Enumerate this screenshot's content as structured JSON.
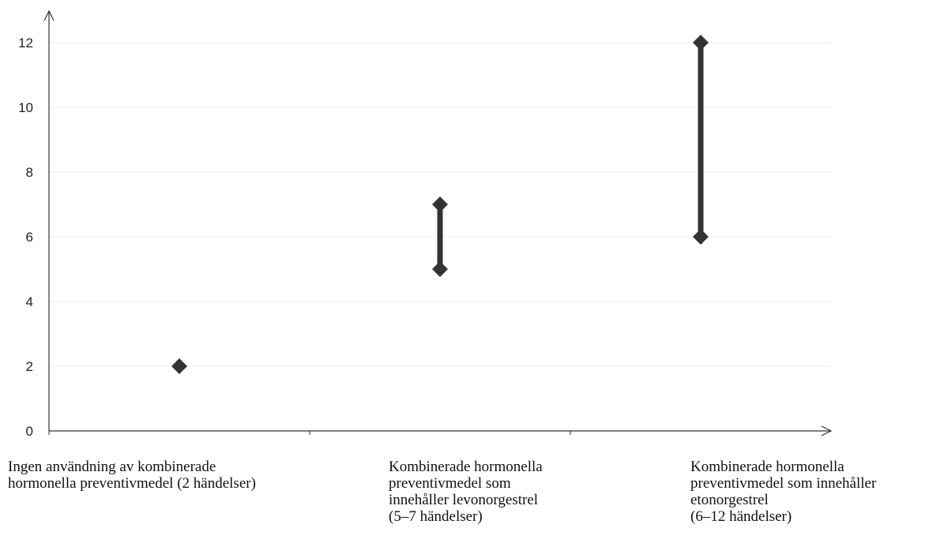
{
  "chart_data": {
    "type": "range",
    "ylim": [
      0,
      12
    ],
    "yticks": [
      "0",
      "2",
      "4",
      "6",
      "8",
      "10",
      "12"
    ],
    "categories": [
      {
        "label_lines": [
          "Ingen användning av kombinerade",
          "hormonella preventivmedel (2 händelser)"
        ],
        "low": 2,
        "high": 2
      },
      {
        "label_lines": [
          "Kombinerade hormonella",
          "preventivmedel som",
          "innehåller levonorgestrel",
          "(5–7 händelser)"
        ],
        "low": 5,
        "high": 7
      },
      {
        "label_lines": [
          "Kombinerade hormonella",
          "preventivmedel som innehåller",
          "etonorgestrel",
          "(6–12 händelser)"
        ],
        "low": 6,
        "high": 12
      }
    ],
    "grid": true,
    "colors": {
      "marker": "#333333",
      "axis": "#333333",
      "grid": "#eeeeee"
    }
  }
}
